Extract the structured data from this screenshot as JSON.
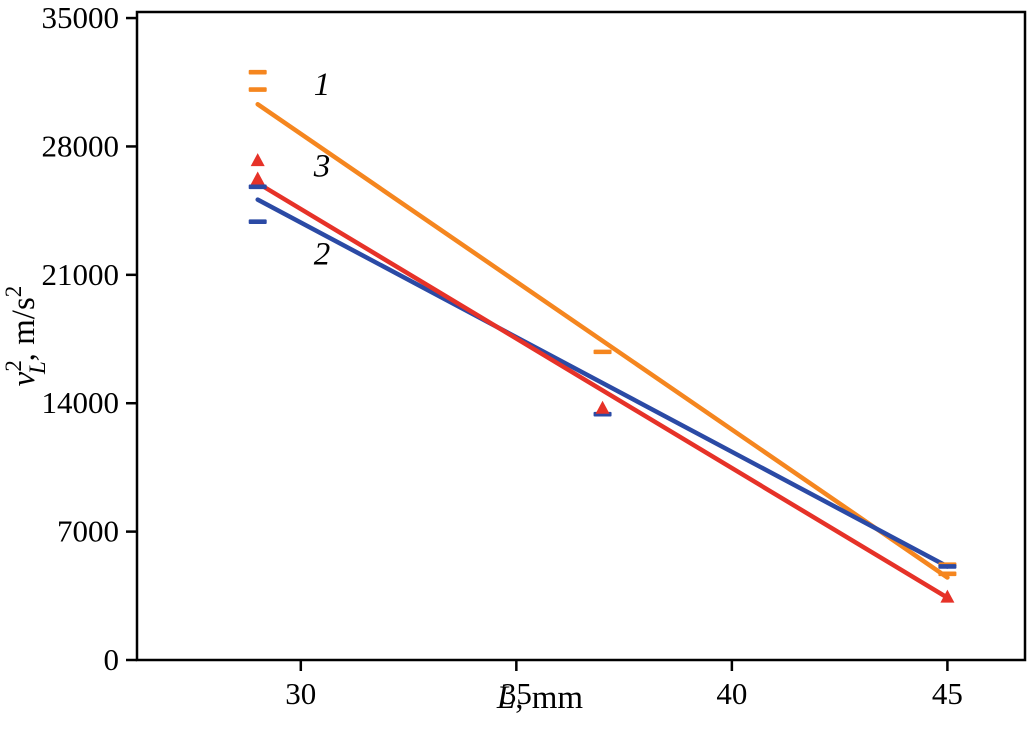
{
  "figure": {
    "background": "#ffffff",
    "axis_color": "#000000"
  },
  "chart_data": {
    "type": "line",
    "title": "",
    "xlabel_parts": [
      {
        "t": "L",
        "italic": true,
        "pos": null,
        "stack": false
      },
      {
        "t": ", mm",
        "italic": false,
        "pos": null,
        "stack": false
      }
    ],
    "ylabel_parts": [
      {
        "t": "v",
        "italic": true,
        "pos": null,
        "stack": false
      },
      {
        "t": "2",
        "italic": false,
        "pos": "sup",
        "stack": false
      },
      {
        "t": "L",
        "italic": true,
        "pos": "sub",
        "stack": true
      },
      {
        "t": ", m/s",
        "italic": false,
        "pos": null,
        "stack": false
      },
      {
        "t": "2",
        "italic": false,
        "pos": "sup",
        "stack": false
      }
    ],
    "x_ticks": [
      30,
      35,
      40,
      45
    ],
    "y_ticks": [
      0,
      7000,
      14000,
      21000,
      28000,
      35000
    ],
    "x_range": [
      26.2,
      46.8
    ],
    "y_range": [
      0,
      35330
    ],
    "grid": false,
    "legend": "inline-annotations",
    "series": [
      {
        "name": "1",
        "color": "#F5861F",
        "marker": "dash",
        "line": [
          [
            29,
            30300
          ],
          [
            45,
            4500
          ]
        ],
        "points": [
          [
            29,
            32050
          ],
          [
            29,
            31100
          ],
          [
            37,
            16800
          ],
          [
            45,
            5200
          ],
          [
            45,
            4700
          ]
        ]
      },
      {
        "name": "2",
        "color": "#2B4AA5",
        "marker": "dash",
        "line": [
          [
            29,
            25100
          ],
          [
            45,
            5100
          ]
        ],
        "points": [
          [
            29,
            25800
          ],
          [
            29,
            23900
          ],
          [
            37,
            13400
          ],
          [
            45,
            5100
          ]
        ]
      },
      {
        "name": "3",
        "color": "#E63228",
        "marker": "triangle",
        "line": [
          [
            29,
            26000
          ],
          [
            45,
            3400
          ]
        ],
        "points": [
          [
            29,
            27200
          ],
          [
            29,
            26200
          ],
          [
            37,
            13700
          ],
          [
            45,
            3400
          ]
        ]
      }
    ],
    "annotations": [
      {
        "text": "1",
        "x": 30.3,
        "y": 30800
      },
      {
        "text": "3",
        "x": 30.3,
        "y": 26350
      },
      {
        "text": "2",
        "x": 30.3,
        "y": 21550
      }
    ]
  }
}
